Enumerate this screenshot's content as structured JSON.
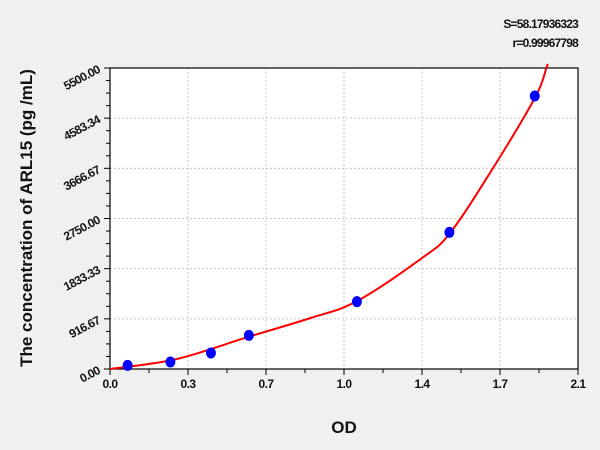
{
  "chart_data": {
    "type": "scatter",
    "title": "",
    "xlabel": "OD",
    "ylabel": "The concentration of ARL15 (pg /mL)",
    "xlim": [
      0,
      2.1
    ],
    "ylim": [
      0,
      5500
    ],
    "x_ticks": [
      0,
      0.35,
      0.7,
      1.05,
      1.4,
      1.75,
      2.1
    ],
    "x_tick_labels": [
      "0.0",
      "0.3",
      "0.7",
      "1.0",
      "1.4",
      "1.7",
      "2.1"
    ],
    "y_ticks": [
      0,
      916.67,
      1833.33,
      2750,
      3666.67,
      4583.34,
      5500
    ],
    "y_tick_labels": [
      "0.00",
      "916.67",
      "1833.33",
      "2750.00",
      "3666.67",
      "4583.34",
      "5500.00"
    ],
    "grid": true,
    "stats": [
      "S=58.17936323",
      "r=0.99967798"
    ],
    "points": {
      "x": [
        0.079,
        0.271,
        0.453,
        0.623,
        1.108,
        1.523,
        1.906
      ],
      "y": [
        67,
        128,
        292,
        615,
        1230,
        2497,
        4988
      ],
      "color": "#0000ff"
    },
    "fit_curve": {
      "x": [
        0,
        0.3,
        0.623,
        0.9,
        1.108,
        1.4,
        1.523,
        1.7,
        1.906,
        1.958
      ],
      "y": [
        0,
        183,
        590,
        932,
        1240,
        2028,
        2470,
        3550,
        4950,
        5500
      ],
      "color": "#ff0000"
    }
  }
}
